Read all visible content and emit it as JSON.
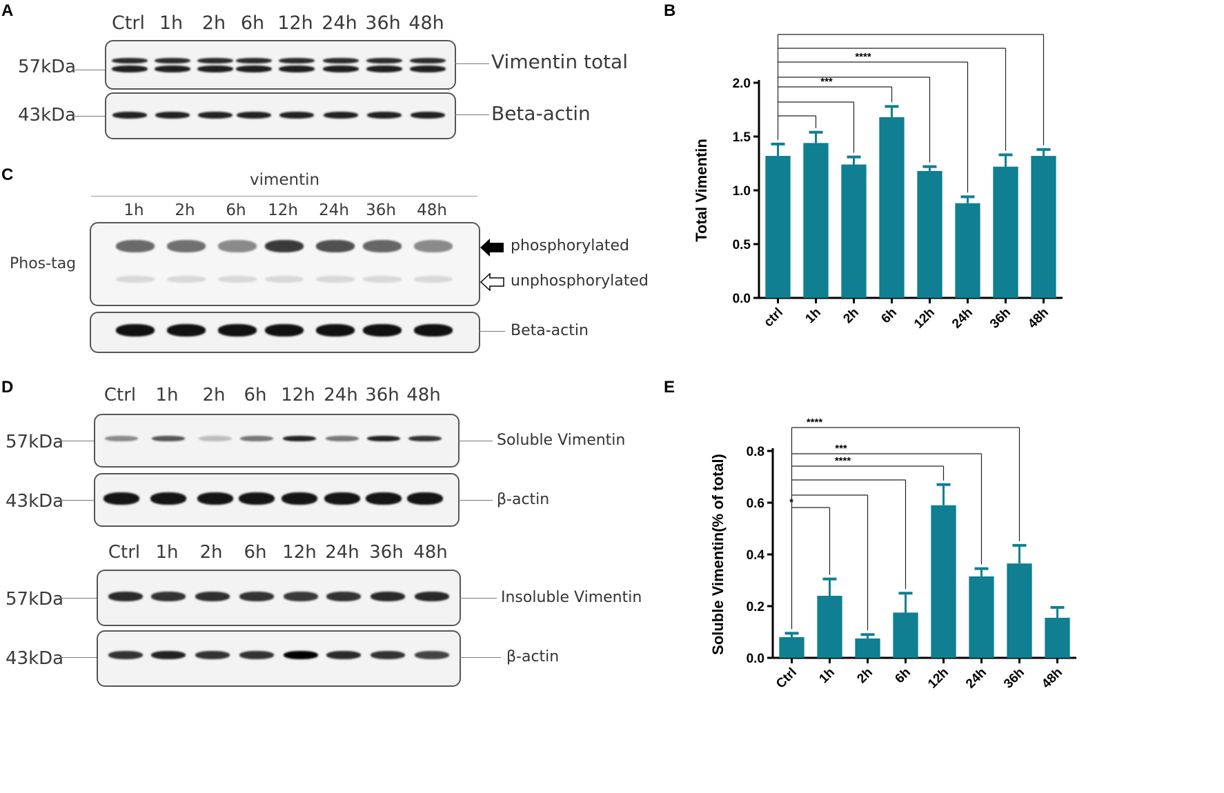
{
  "panels": {
    "A": {
      "label": "A",
      "lanes": [
        "Ctrl",
        "1h",
        "2h",
        "6h",
        "12h",
        "24h",
        "36h",
        "48h"
      ],
      "blots": [
        {
          "mw": "57kDa",
          "name": "Vimentin total"
        },
        {
          "mw": "43kDa",
          "name": "Beta-actin"
        }
      ]
    },
    "C": {
      "label": "C",
      "group_label": "vimentin",
      "lanes": [
        "1h",
        "2h",
        "6h",
        "12h",
        "24h",
        "36h",
        "48h"
      ],
      "gel_label": "Phos-tag",
      "phospho_label": "phosphorylated",
      "unphospho_label": "unphosphorylated",
      "actin_label": "Beta-actin"
    },
    "D": {
      "label": "D",
      "lanes_top": [
        "Ctrl",
        "1h",
        "2h",
        "6h",
        "12h",
        "24h",
        "36h",
        "48h"
      ],
      "lanes_bottom": [
        "Ctrl",
        "1h",
        "2h",
        "6h",
        "12h",
        "24h",
        "36h",
        "48h"
      ],
      "blots": [
        {
          "mw": "57kDa",
          "name": "Soluble Vimentin"
        },
        {
          "mw": "43kDa",
          "name": "β-actin"
        },
        {
          "mw": "57kDa",
          "name": "Insoluble Vimentin"
        },
        {
          "mw": "43kDa",
          "name": "β-actin"
        }
      ]
    },
    "B": {
      "label": "B"
    },
    "E": {
      "label": "E"
    }
  },
  "colors": {
    "bar": "#0f7f91",
    "axis": "#000000"
  },
  "chart_data": [
    {
      "panel": "B",
      "type": "bar",
      "ylabel": "Total Vimentin",
      "xlabel": "",
      "categories": [
        "ctrl",
        "1h",
        "2h",
        "6h",
        "12h",
        "24h",
        "36h",
        "48h"
      ],
      "values": [
        1.32,
        1.44,
        1.24,
        1.68,
        1.18,
        0.88,
        1.22,
        1.32
      ],
      "errors": [
        0.11,
        0.1,
        0.07,
        0.1,
        0.04,
        0.06,
        0.11,
        0.06
      ],
      "ylim": [
        0,
        2.0
      ],
      "yticks": [
        "0.0",
        "0.5",
        "1.0",
        "1.5",
        "2.0"
      ],
      "comparisons": [
        {
          "from": "ctrl",
          "to": "1h",
          "label": ""
        },
        {
          "from": "ctrl",
          "to": "2h",
          "label": ""
        },
        {
          "from": "ctrl",
          "to": "6h",
          "label": "***"
        },
        {
          "from": "ctrl",
          "to": "12h",
          "label": ""
        },
        {
          "from": "ctrl",
          "to": "24h",
          "label": "****"
        },
        {
          "from": "ctrl",
          "to": "36h",
          "label": ""
        },
        {
          "from": "ctrl",
          "to": "48h",
          "label": ""
        }
      ]
    },
    {
      "panel": "E",
      "type": "bar",
      "ylabel": "Soluble Vimentin(% of total)",
      "xlabel": "",
      "categories": [
        "Ctrl",
        "1h",
        "2h",
        "6h",
        "12h",
        "24h",
        "36h",
        "48h"
      ],
      "values": [
        0.08,
        0.24,
        0.075,
        0.175,
        0.59,
        0.315,
        0.365,
        0.155
      ],
      "errors": [
        0.015,
        0.065,
        0.015,
        0.075,
        0.08,
        0.03,
        0.07,
        0.04
      ],
      "ylim": [
        0,
        0.8
      ],
      "yticks": [
        "0.0",
        "0.2",
        "0.4",
        "0.6",
        "0.8"
      ],
      "comparisons": [
        {
          "from": "Ctrl",
          "to": "1h",
          "label": "*"
        },
        {
          "from": "Ctrl",
          "to": "2h",
          "label": ""
        },
        {
          "from": "Ctrl",
          "to": "6h",
          "label": ""
        },
        {
          "from": "Ctrl",
          "to": "12h",
          "label": "****"
        },
        {
          "from": "Ctrl",
          "to": "24h",
          "label": "***"
        },
        {
          "from": "Ctrl",
          "to": "36h",
          "label": "****"
        }
      ]
    }
  ]
}
